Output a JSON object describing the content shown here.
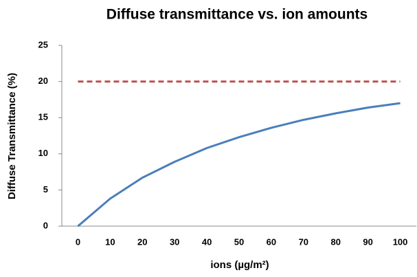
{
  "chart_data": {
    "type": "line",
    "title": "Diffuse transmittance vs. ion amounts",
    "x_label": "ions (µg/m²)",
    "y_label": "Diffuse Transmittance (%)",
    "categories": [
      "0",
      "10",
      "20",
      "30",
      "40",
      "50",
      "60",
      "70",
      "80",
      "90",
      "100"
    ],
    "series": [
      {
        "color": "#4a7ebb",
        "dash": false,
        "values": [
          0,
          3.8,
          6.7,
          8.9,
          10.8,
          12.3,
          13.6,
          14.7,
          15.6,
          16.4,
          17.0
        ]
      },
      {
        "color": "#c0504d",
        "dash": true,
        "values": [
          20,
          20,
          20,
          20,
          20,
          20,
          20,
          20,
          20,
          20,
          20
        ]
      }
    ],
    "ylim": [
      0,
      25
    ],
    "yticks": [
      0,
      5,
      10,
      15,
      20,
      25
    ],
    "grid": false
  }
}
